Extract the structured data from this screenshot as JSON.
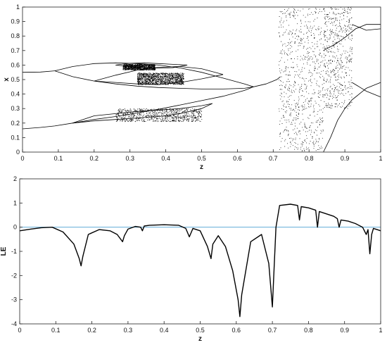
{
  "colors": {
    "background": "#ffffff",
    "axes": "#222222",
    "data": "#000000",
    "reference_line": "#4a9fd1"
  },
  "chart_data": [
    {
      "type": "scatter",
      "subtype": "bifurcation-diagram",
      "title": "",
      "xlabel": "z",
      "ylabel": "x",
      "xlim": [
        0,
        1
      ],
      "ylim": [
        0,
        1
      ],
      "xticks": [
        "0",
        "0.1",
        "0.2",
        "0.3",
        "0.4",
        "0.5",
        "0.6",
        "0.7",
        "0.8",
        "0.9",
        "1"
      ],
      "yticks": [
        "0",
        "0.1",
        "0.2",
        "0.3",
        "0.4",
        "0.5",
        "0.6",
        "0.7",
        "0.8",
        "0.9",
        "1"
      ],
      "grid": false,
      "box": true,
      "branches": [
        {
          "z": [
            0.0,
            0.05,
            0.09
          ],
          "x": [
            0.55,
            0.552,
            0.56
          ]
        },
        {
          "z": [
            0.0,
            0.05,
            0.09
          ],
          "x": [
            0.16,
            0.17,
            0.18
          ]
        },
        {
          "z": [
            0.09,
            0.14,
            0.2,
            0.26,
            0.32,
            0.38,
            0.44,
            0.5,
            0.56,
            0.62,
            0.645
          ],
          "x": [
            0.56,
            0.59,
            0.61,
            0.615,
            0.61,
            0.6,
            0.58,
            0.55,
            0.51,
            0.47,
            0.45
          ]
        },
        {
          "z": [
            0.09,
            0.14,
            0.2,
            0.26,
            0.32,
            0.38,
            0.44,
            0.5,
            0.56,
            0.62,
            0.645
          ],
          "x": [
            0.56,
            0.52,
            0.49,
            0.47,
            0.455,
            0.445,
            0.44,
            0.435,
            0.435,
            0.44,
            0.45
          ]
        },
        {
          "z": [
            0.09,
            0.14,
            0.2,
            0.26,
            0.32,
            0.38,
            0.44,
            0.5,
            0.56,
            0.62,
            0.645
          ],
          "x": [
            0.18,
            0.2,
            0.225,
            0.245,
            0.27,
            0.295,
            0.325,
            0.355,
            0.385,
            0.425,
            0.45
          ]
        },
        {
          "z": [
            0.14,
            0.2,
            0.26,
            0.32,
            0.38,
            0.44,
            0.5,
            0.53
          ],
          "x": [
            0.2,
            0.25,
            0.265,
            0.28,
            0.29,
            0.3,
            0.32,
            0.335
          ]
        },
        {
          "z": [
            0.14,
            0.2,
            0.26,
            0.32,
            0.38,
            0.44,
            0.5,
            0.53
          ],
          "x": [
            0.2,
            0.215,
            0.225,
            0.235,
            0.245,
            0.265,
            0.3,
            0.335
          ]
        },
        {
          "z": [
            0.2,
            0.26,
            0.32,
            0.38,
            0.44,
            0.5,
            0.56
          ],
          "x": [
            0.49,
            0.53,
            0.565,
            0.585,
            0.59,
            0.575,
            0.535
          ]
        },
        {
          "z": [
            0.2,
            0.26,
            0.32,
            0.38,
            0.44,
            0.5,
            0.56
          ],
          "x": [
            0.49,
            0.48,
            0.47,
            0.465,
            0.48,
            0.505,
            0.535
          ]
        },
        {
          "z": [
            0.26,
            0.3,
            0.34,
            0.38,
            0.42,
            0.46
          ],
          "x": [
            0.6,
            0.612,
            0.615,
            0.61,
            0.605,
            0.6
          ]
        },
        {
          "z": [
            0.26,
            0.3,
            0.34,
            0.38,
            0.42,
            0.46
          ],
          "x": [
            0.6,
            0.59,
            0.582,
            0.578,
            0.582,
            0.6
          ]
        },
        {
          "z": [
            0.645,
            0.68,
            0.71,
            0.72
          ],
          "x": [
            0.45,
            0.47,
            0.5,
            0.52
          ]
        },
        {
          "z": [
            0.84,
            0.87,
            0.9,
            0.93,
            0.96,
            0.98,
            1.0
          ],
          "x": [
            0.7,
            0.74,
            0.79,
            0.85,
            0.88,
            0.88,
            0.88
          ]
        },
        {
          "z": [
            0.92,
            0.94,
            0.96,
            0.98,
            1.0
          ],
          "x": [
            0.88,
            0.86,
            0.84,
            0.845,
            0.85
          ]
        },
        {
          "z": [
            0.84,
            0.86,
            0.88,
            0.9,
            0.92,
            0.94,
            0.96,
            0.98,
            1.0
          ],
          "x": [
            0.0,
            0.1,
            0.22,
            0.3,
            0.36,
            0.4,
            0.44,
            0.46,
            0.48
          ]
        },
        {
          "z": [
            0.92,
            0.94,
            0.96,
            0.98,
            1.0
          ],
          "x": [
            0.48,
            0.45,
            0.42,
            0.4,
            0.38
          ]
        }
      ],
      "chaotic_bands": [
        {
          "z": [
            0.26,
            0.5
          ],
          "x": [
            0.21,
            0.3
          ],
          "density": 0.6
        },
        {
          "z": [
            0.28,
            0.37
          ],
          "x": [
            0.565,
            0.605
          ],
          "density": 0.7
        },
        {
          "z": [
            0.32,
            0.45
          ],
          "x": [
            0.465,
            0.545
          ],
          "density": 0.9
        },
        {
          "z": [
            0.715,
            0.84
          ],
          "x": [
            0.0,
            1.0
          ],
          "density": 0.55
        },
        {
          "z": [
            0.84,
            0.92
          ],
          "x": [
            0.3,
            1.0
          ],
          "density": 0.4
        }
      ]
    },
    {
      "type": "line",
      "title": "",
      "xlabel": "z",
      "ylabel": "LE",
      "xlim": [
        0,
        1
      ],
      "ylim": [
        -4,
        2
      ],
      "xticks": [
        "0",
        "0.1",
        "0.2",
        "0.3",
        "0.4",
        "0.5",
        "0.6",
        "0.7",
        "0.8",
        "0.9",
        "1"
      ],
      "yticks": [
        "-4",
        "-3",
        "-2",
        "-1",
        "0",
        "1",
        "2"
      ],
      "grid": false,
      "box": true,
      "reference_line": {
        "y": 0
      },
      "series": [
        {
          "x": [
            0.0,
            0.03,
            0.06,
            0.09,
            0.12,
            0.15,
            0.165,
            0.17,
            0.175,
            0.19,
            0.22,
            0.25,
            0.27,
            0.285,
            0.29,
            0.3,
            0.32,
            0.335,
            0.34,
            0.345,
            0.36,
            0.4,
            0.44,
            0.46,
            0.47,
            0.48,
            0.5,
            0.52,
            0.53,
            0.535,
            0.55,
            0.57,
            0.59,
            0.605,
            0.61,
            0.615,
            0.64,
            0.67,
            0.69,
            0.7,
            0.705,
            0.71,
            0.72,
            0.75,
            0.77,
            0.775,
            0.78,
            0.8,
            0.82,
            0.825,
            0.83,
            0.85,
            0.87,
            0.88,
            0.885,
            0.89,
            0.91,
            0.93,
            0.95,
            0.96,
            0.965,
            0.97,
            0.975,
            0.98,
            0.99,
            1.0
          ],
          "y": [
            -0.15,
            -0.08,
            -0.02,
            0.0,
            -0.2,
            -0.7,
            -1.3,
            -1.6,
            -1.2,
            -0.3,
            -0.1,
            -0.15,
            -0.3,
            -0.6,
            -0.35,
            -0.08,
            0.03,
            0.0,
            -0.15,
            0.05,
            0.08,
            0.1,
            0.08,
            -0.05,
            -0.4,
            -0.05,
            -0.15,
            -0.8,
            -1.3,
            -0.7,
            -0.35,
            -0.8,
            -1.8,
            -3.0,
            -3.7,
            -2.8,
            -0.6,
            -0.3,
            -1.5,
            -3.3,
            -1.6,
            0.0,
            0.9,
            0.95,
            0.9,
            0.3,
            0.85,
            0.8,
            0.7,
            0.0,
            0.65,
            0.55,
            0.45,
            0.35,
            0.0,
            0.3,
            0.25,
            0.15,
            0.0,
            -0.3,
            -0.1,
            -1.1,
            -0.3,
            -0.05,
            -0.1,
            -0.15
          ]
        }
      ]
    }
  ]
}
